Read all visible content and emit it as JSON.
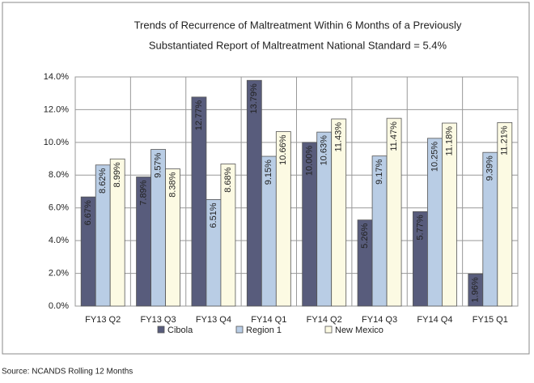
{
  "chart_data": {
    "type": "bar",
    "title": [
      "Trends of Recurrence of Maltreatment Within 6 Months of a Previously",
      "Substantiated Report of Maltreatment  National Standard = 5.4%"
    ],
    "categories": [
      "FY13 Q2",
      "FY13 Q3",
      "FY13 Q4",
      "FY14 Q1",
      "FY14 Q2",
      "FY14 Q3",
      "FY14 Q4",
      "FY15 Q1"
    ],
    "series": [
      {
        "name": "Cibola",
        "color": "#585c7c",
        "values": [
          6.67,
          7.89,
          12.77,
          13.79,
          10.0,
          5.26,
          5.77,
          1.96
        ],
        "value_labels": [
          "6.67%",
          "7.89%",
          "12.77%",
          "13.79%",
          "10.00%",
          "5.26%",
          "5.77%",
          "1.96%"
        ]
      },
      {
        "name": "Region 1",
        "color": "#b9cde5",
        "values": [
          8.62,
          9.57,
          6.51,
          9.15,
          10.63,
          9.17,
          10.25,
          9.39
        ],
        "value_labels": [
          "8.62%",
          "9.57%",
          "6.51%",
          "9.15%",
          "10.63%",
          "9.17%",
          "10.25%",
          "9.39%"
        ]
      },
      {
        "name": "New Mexico",
        "color": "#fcfae3",
        "values": [
          8.99,
          8.38,
          8.68,
          10.66,
          11.43,
          11.47,
          11.18,
          11.21
        ],
        "value_labels": [
          "8.99%",
          "8.38%",
          "8.68%",
          "10.66%",
          "11.43%",
          "11.47%",
          "11.18%",
          "11.21%"
        ]
      }
    ],
    "ylim": [
      0,
      14
    ],
    "yticks": [
      {
        "value": 0,
        "label": "0.0%"
      },
      {
        "value": 2,
        "label": "2.0%"
      },
      {
        "value": 4,
        "label": "4.0%"
      },
      {
        "value": 6,
        "label": "6.0%"
      },
      {
        "value": 8,
        "label": "8.0%"
      },
      {
        "value": 10,
        "label": "10.0%"
      },
      {
        "value": 12,
        "label": "12.0%"
      },
      {
        "value": 14,
        "label": "14.0%"
      }
    ],
    "grid": true,
    "legend": "bottom",
    "source": "Source: NCANDS Rolling 12 Months"
  }
}
